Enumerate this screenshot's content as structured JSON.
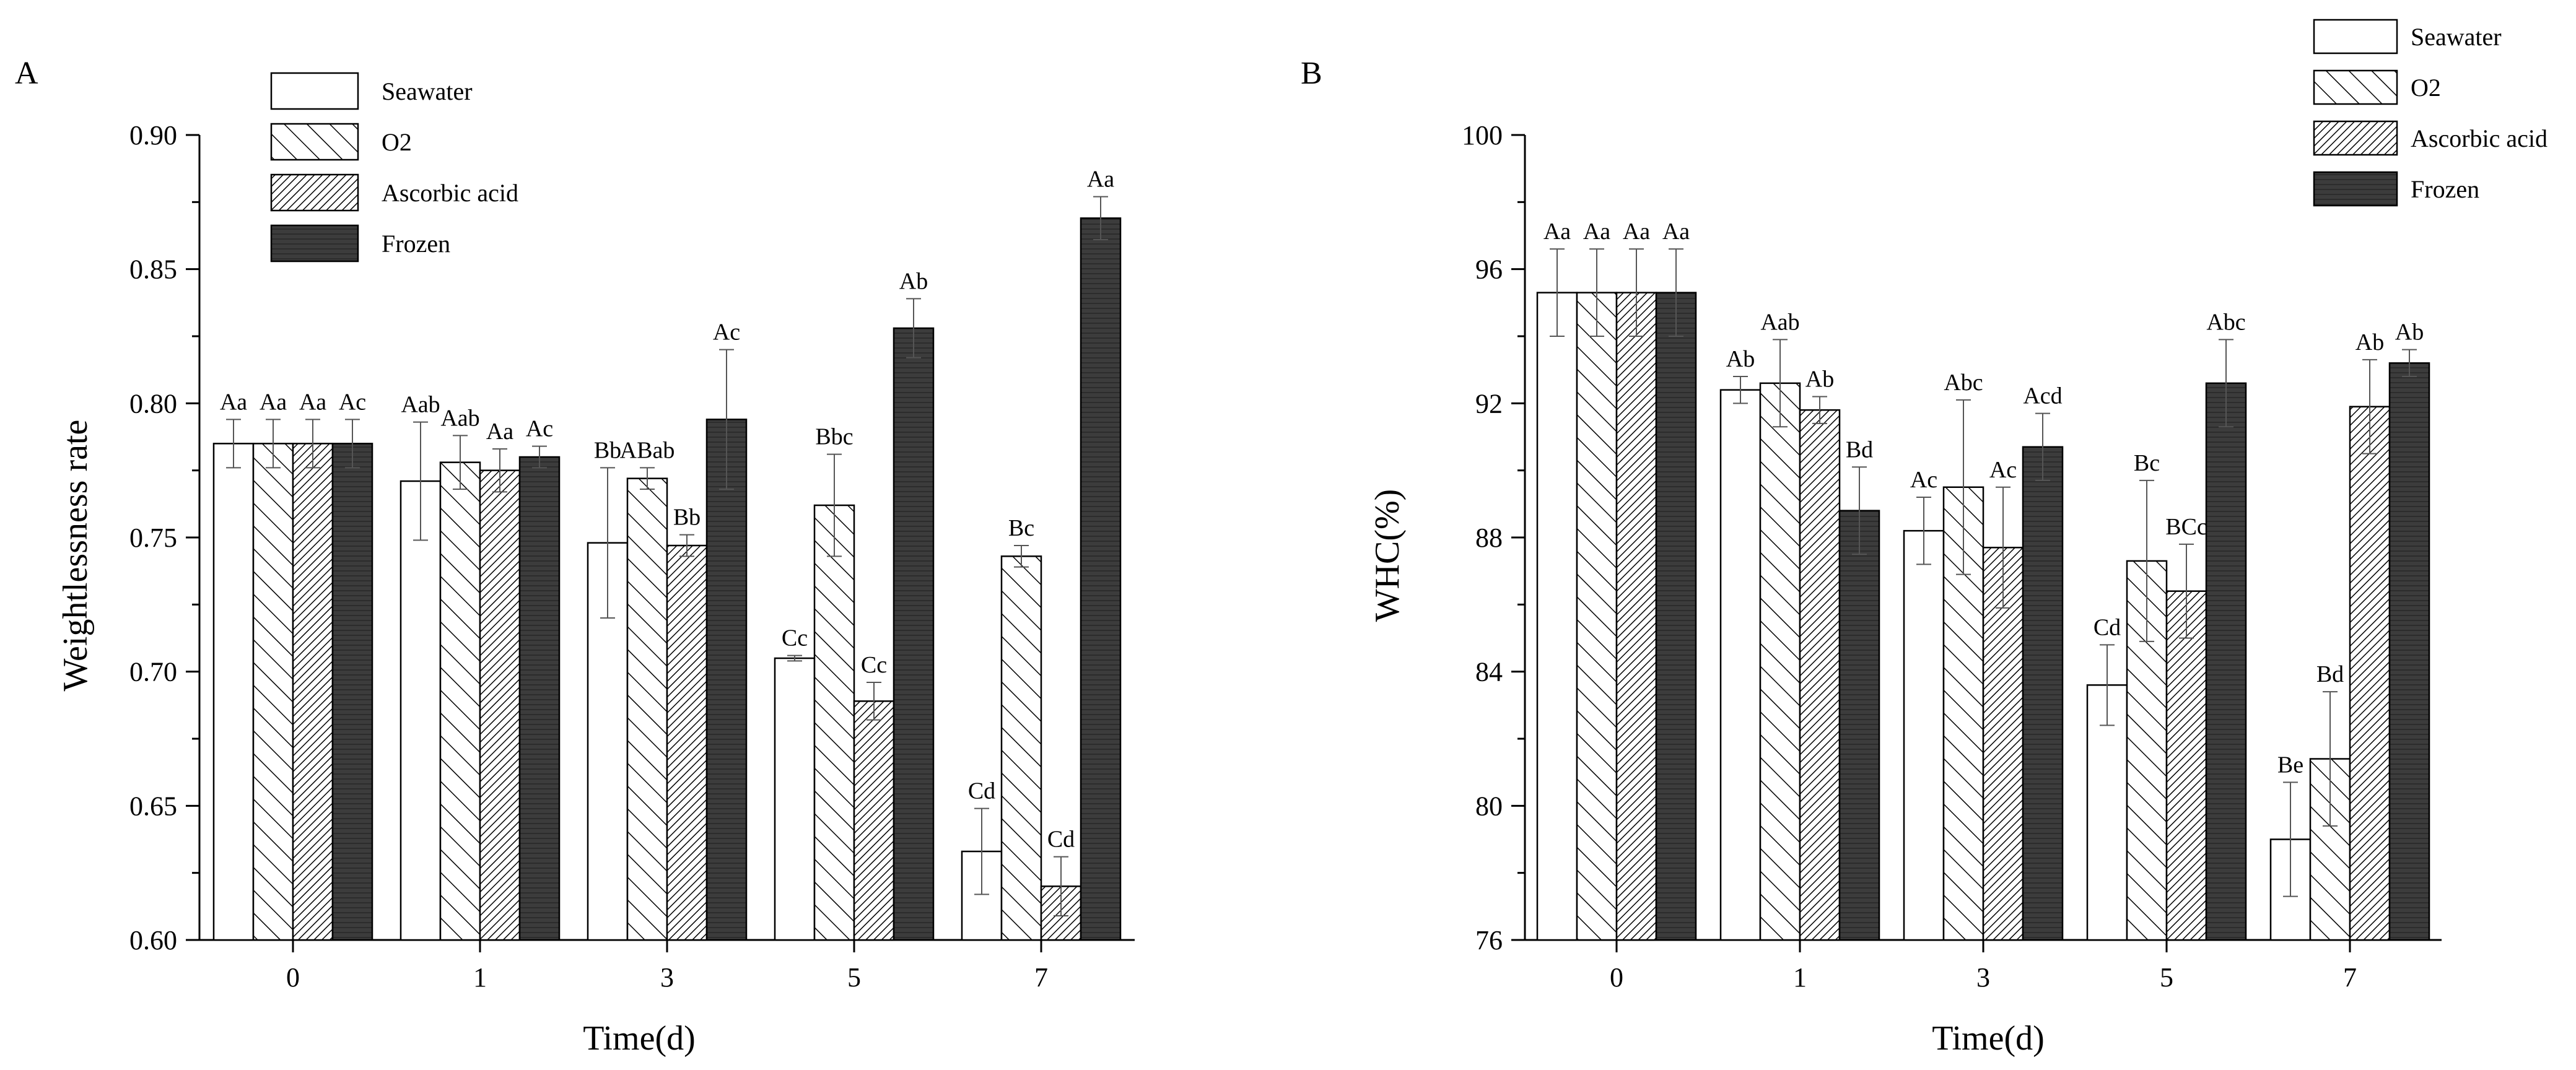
{
  "chart_data": [
    {
      "type": "bar",
      "panel_label": "A",
      "xlabel": "Time(d)",
      "ylabel": "Weightlessness rate",
      "categories": [
        "0",
        "1",
        "3",
        "5",
        "7"
      ],
      "ylim": [
        0.6,
        0.9
      ],
      "yticks": [
        "0.60",
        "0.65",
        "0.70",
        "0.75",
        "0.80",
        "0.85",
        "0.90"
      ],
      "legend_position": "top-left",
      "series": [
        {
          "name": "Seawater",
          "pattern": "empty",
          "values": [
            0.785,
            0.771,
            0.748,
            0.705,
            0.633
          ],
          "errors": [
            0.009,
            0.022,
            0.028,
            0.001,
            0.016
          ],
          "labels": [
            "Aa",
            "Aab",
            "Bb",
            "Cc",
            "Cd"
          ]
        },
        {
          "name": "O2",
          "pattern": "wide-hatch",
          "values": [
            0.785,
            0.778,
            0.772,
            0.762,
            0.743
          ],
          "errors": [
            0.009,
            0.01,
            0.004,
            0.019,
            0.004
          ],
          "labels": [
            "Aa",
            "Aab",
            "ABab",
            "Bbc",
            "Bc"
          ]
        },
        {
          "name": "Ascorbic acid",
          "pattern": "dense-hatch",
          "values": [
            0.785,
            0.775,
            0.747,
            0.689,
            0.62
          ],
          "errors": [
            0.009,
            0.008,
            0.004,
            0.007,
            0.011
          ],
          "labels": [
            "Aa",
            "Aa",
            "Bb",
            "Cc",
            "Cd"
          ]
        },
        {
          "name": "Frozen",
          "pattern": "dark",
          "values": [
            0.785,
            0.78,
            0.794,
            0.828,
            0.869
          ],
          "errors": [
            0.009,
            0.004,
            0.026,
            0.011,
            0.008
          ],
          "labels": [
            "Ac",
            "Ac",
            "Ac",
            "Ab",
            "Aa"
          ]
        }
      ]
    },
    {
      "type": "bar",
      "panel_label": "B",
      "xlabel": "Time(d)",
      "ylabel": "WHC(%)",
      "categories": [
        "0",
        "1",
        "3",
        "5",
        "7"
      ],
      "ylim": [
        76,
        100
      ],
      "yticks": [
        "76",
        "80",
        "84",
        "88",
        "92",
        "96",
        "100"
      ],
      "legend_position": "top-right",
      "series": [
        {
          "name": "Seawater",
          "pattern": "empty",
          "values": [
            95.3,
            92.4,
            88.2,
            83.6,
            79.0
          ],
          "errors": [
            1.3,
            0.4,
            1.0,
            1.2,
            1.7
          ],
          "labels": [
            "Aa",
            "Ab",
            "Ac",
            "Cd",
            "Be"
          ]
        },
        {
          "name": "O2",
          "pattern": "wide-hatch",
          "values": [
            95.3,
            92.6,
            89.5,
            87.3,
            81.4
          ],
          "errors": [
            1.3,
            1.3,
            2.6,
            2.4,
            2.0
          ],
          "labels": [
            "Aa",
            "Aab",
            "Abc",
            "Bc",
            "Bd"
          ]
        },
        {
          "name": "Ascorbic acid",
          "pattern": "dense-hatch",
          "values": [
            95.3,
            91.8,
            87.7,
            86.4,
            91.9
          ],
          "errors": [
            1.3,
            0.4,
            1.8,
            1.4,
            1.4
          ],
          "labels": [
            "Aa",
            "Ab",
            "Ac",
            "BCc",
            "Ab"
          ]
        },
        {
          "name": "Frozen",
          "pattern": "dark",
          "values": [
            95.3,
            88.8,
            90.7,
            92.6,
            93.2
          ],
          "errors": [
            1.3,
            1.3,
            1.0,
            1.3,
            0.4
          ],
          "labels": [
            "Aa",
            "Bd",
            "Acd",
            "Abc",
            "Ab"
          ]
        }
      ]
    }
  ]
}
